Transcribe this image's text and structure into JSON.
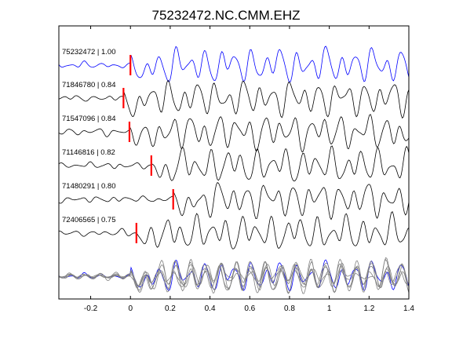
{
  "chart_data": {
    "type": "line",
    "title": "75232472.NC.CMM.EHZ",
    "xlabel": "",
    "ylabel": "",
    "xlim": [
      -0.36,
      1.4
    ],
    "x_ticks": [
      -0.2,
      0,
      0.2,
      0.4,
      0.6,
      0.8,
      1,
      1.2,
      1.4
    ],
    "x_tick_labels": [
      "-0.2",
      "0",
      "0.2",
      "0.4",
      "0.6",
      "0.8",
      "1",
      "1.2",
      "1.4"
    ],
    "grid": false,
    "legend": "none",
    "colors": {
      "reference": "#0000ff",
      "trace": "#000000",
      "pick": "#ff0000",
      "overlay": "#808080"
    },
    "series": [
      {
        "label": "75232472 | 1.00",
        "pick_time": 0.0,
        "color": "#0000ff"
      },
      {
        "label": "71846780 | 0.84",
        "pick_time": -0.035,
        "color": "#000000"
      },
      {
        "label": "71547096 | 0.84",
        "pick_time": -0.005,
        "color": "#000000"
      },
      {
        "label": "71146816 | 0.82",
        "pick_time": 0.105,
        "color": "#000000"
      },
      {
        "label": "71480291 | 0.80",
        "pick_time": 0.215,
        "color": "#000000"
      },
      {
        "label": "72406565 | 0.75",
        "pick_time": 0.03,
        "color": "#000000"
      }
    ],
    "overlay": {
      "count": 6,
      "colors": [
        "#0000ff",
        "#808080"
      ]
    }
  }
}
